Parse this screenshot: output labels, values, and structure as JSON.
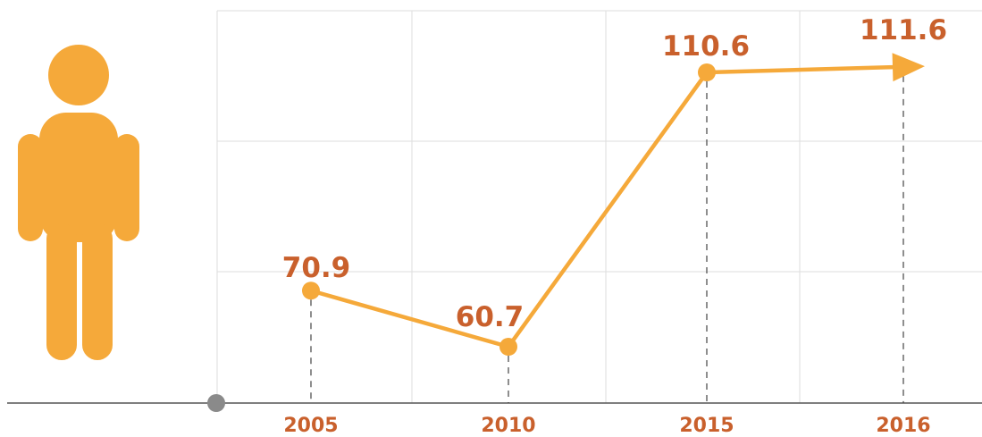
{
  "colors": {
    "line": "#f5a93a",
    "label": "#c9602c",
    "tick": "#c9602c",
    "grid": "#dddddd",
    "axis": "#555555",
    "origin_dot": "#8a8a8a",
    "icon": "#f5a93a"
  },
  "icon": {
    "name": "person-icon"
  },
  "chart_data": {
    "type": "line",
    "categories": [
      "2005",
      "2010",
      "2015",
      "2016"
    ],
    "series": [
      {
        "values": [
          70.9,
          60.7,
          110.6,
          111.6
        ]
      }
    ],
    "data_labels": [
      "70.9",
      "60.7",
      "110.6",
      "111.6"
    ],
    "title": "",
    "xlabel": "",
    "ylabel": "",
    "ylim": [
      20,
      125
    ],
    "grid": true,
    "end_marker": "arrow"
  }
}
